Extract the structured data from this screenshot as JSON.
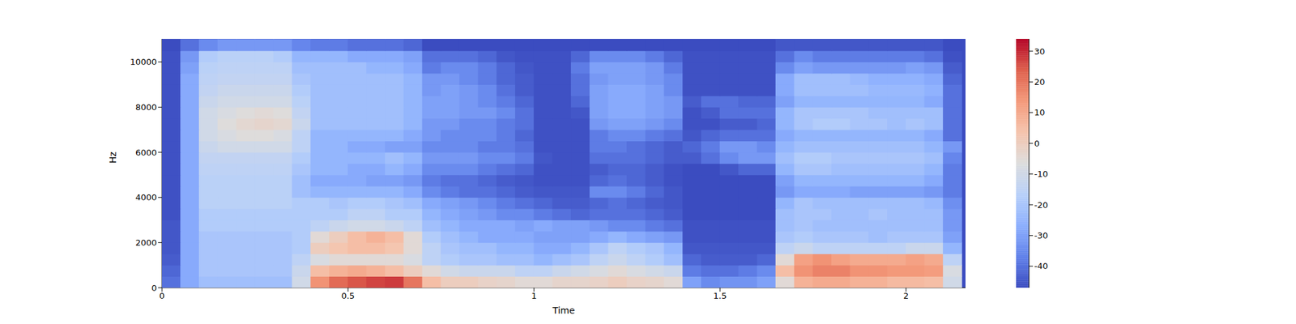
{
  "chart_data": {
    "type": "heatmap",
    "xlabel": "Time",
    "ylabel": "Hz",
    "x": [
      0,
      0.05,
      0.1,
      0.15,
      0.2,
      0.25,
      0.3,
      0.35,
      0.4,
      0.45,
      0.5,
      0.55,
      0.6,
      0.65,
      0.7,
      0.75,
      0.8,
      0.85,
      0.9,
      0.95,
      1,
      1.05,
      1.1,
      1.15,
      1.2,
      1.25,
      1.3,
      1.35,
      1.4,
      1.45,
      1.5,
      1.55,
      1.6,
      1.65,
      1.7,
      1.75,
      1.8,
      1.85,
      1.9,
      1.95,
      2,
      2.05,
      2.1
    ],
    "y": [
      0,
      500,
      1000,
      1500,
      2000,
      2500,
      3000,
      3500,
      4000,
      4500,
      5000,
      5500,
      6000,
      6500,
      7000,
      7500,
      8000,
      8500,
      9000,
      9500,
      10000,
      10500
    ],
    "values": [
      [
        -40,
        -28,
        -22,
        -22,
        -22,
        -22,
        -22,
        -10,
        15,
        22,
        25,
        27,
        28,
        20,
        5,
        0,
        0,
        -2,
        -3,
        -5,
        -5,
        -3,
        -3,
        -2,
        0,
        -2,
        -3,
        -5,
        -30,
        -35,
        -33,
        -33,
        -30,
        -5,
        8,
        10,
        10,
        8,
        8,
        6,
        6,
        5,
        -10
      ],
      [
        -42,
        -28,
        -20,
        -20,
        -20,
        -20,
        -20,
        -12,
        5,
        8,
        10,
        8,
        5,
        0,
        -5,
        -10,
        -12,
        -12,
        -12,
        -15,
        -15,
        -12,
        -10,
        -8,
        -5,
        -8,
        -10,
        -12,
        -38,
        -40,
        -40,
        -38,
        -35,
        5,
        15,
        18,
        18,
        15,
        15,
        14,
        14,
        13,
        -8
      ],
      [
        -44,
        -28,
        -20,
        -20,
        -20,
        -20,
        -20,
        -15,
        -8,
        -5,
        -5,
        -5,
        -5,
        -8,
        -15,
        -18,
        -20,
        -20,
        -22,
        -22,
        -25,
        -22,
        -20,
        -15,
        -12,
        -15,
        -18,
        -22,
        -42,
        -44,
        -44,
        -44,
        -42,
        -5,
        12,
        15,
        12,
        10,
        10,
        10,
        12,
        10,
        -15
      ],
      [
        -45,
        -28,
        -20,
        -20,
        -20,
        -20,
        -20,
        -18,
        0,
        3,
        5,
        5,
        3,
        -5,
        -15,
        -20,
        -22,
        -22,
        -25,
        -25,
        -28,
        -28,
        -25,
        -20,
        -15,
        -18,
        -20,
        -25,
        -45,
        -45,
        -45,
        -45,
        -45,
        -15,
        -12,
        -15,
        -15,
        -15,
        -15,
        -15,
        -12,
        -12,
        -25
      ],
      [
        -45,
        -28,
        -20,
        -20,
        -20,
        -20,
        -20,
        -18,
        -5,
        0,
        5,
        8,
        5,
        -5,
        -18,
        -22,
        -25,
        -28,
        -28,
        -28,
        -30,
        -30,
        -30,
        -28,
        -25,
        -28,
        -30,
        -32,
        -46,
        -46,
        -46,
        -46,
        -46,
        -20,
        -18,
        -20,
        -20,
        -20,
        -22,
        -20,
        -20,
        -20,
        -30
      ],
      [
        -45,
        -28,
        -18,
        -18,
        -18,
        -18,
        -18,
        -18,
        -15,
        -12,
        -10,
        -10,
        -12,
        -15,
        -22,
        -25,
        -28,
        -28,
        -28,
        -30,
        -28,
        -30,
        -30,
        -32,
        -35,
        -35,
        -38,
        -40,
        -46,
        -46,
        -46,
        -46,
        -46,
        -22,
        -20,
        -22,
        -22,
        -22,
        -22,
        -22,
        -22,
        -22,
        -32
      ],
      [
        -46,
        -28,
        -18,
        -18,
        -18,
        -18,
        -18,
        -18,
        -18,
        -18,
        -15,
        -15,
        -18,
        -18,
        -25,
        -28,
        -30,
        -32,
        -35,
        -35,
        -38,
        -40,
        -42,
        -40,
        -40,
        -40,
        -42,
        -44,
        -47,
        -47,
        -47,
        -47,
        -47,
        -22,
        -20,
        -20,
        -22,
        -22,
        -20,
        -22,
        -22,
        -22,
        -32
      ],
      [
        -46,
        -28,
        -16,
        -16,
        -16,
        -16,
        -16,
        -18,
        -18,
        -20,
        -18,
        -18,
        -20,
        -22,
        -28,
        -30,
        -32,
        -35,
        -38,
        -40,
        -42,
        -44,
        -44,
        -42,
        -40,
        -42,
        -44,
        -45,
        -47,
        -47,
        -47,
        -47,
        -47,
        -25,
        -20,
        -22,
        -22,
        -22,
        -22,
        -22,
        -22,
        -24,
        -34
      ],
      [
        -46,
        -28,
        -16,
        -16,
        -16,
        -16,
        -16,
        -22,
        -25,
        -25,
        -25,
        -25,
        -25,
        -28,
        -35,
        -38,
        -40,
        -40,
        -42,
        -44,
        -45,
        -45,
        -45,
        -35,
        -35,
        -38,
        -42,
        -45,
        -47,
        -47,
        -47,
        -47,
        -47,
        -32,
        -28,
        -28,
        -28,
        -30,
        -30,
        -30,
        -30,
        -32,
        -38
      ],
      [
        -46,
        -28,
        -16,
        -16,
        -16,
        -16,
        -16,
        -22,
        -28,
        -28,
        -28,
        -30,
        -30,
        -32,
        -38,
        -40,
        -40,
        -42,
        -44,
        -45,
        -46,
        -46,
        -46,
        -42,
        -40,
        -42,
        -44,
        -46,
        -47,
        -47,
        -47,
        -47,
        -47,
        -30,
        -25,
        -25,
        -25,
        -25,
        -25,
        -25,
        -25,
        -28,
        -38
      ],
      [
        -46,
        -28,
        -15,
        -15,
        -15,
        -15,
        -15,
        -20,
        -25,
        -25,
        -28,
        -28,
        -25,
        -28,
        -35,
        -35,
        -35,
        -38,
        -40,
        -42,
        -46,
        -46,
        -46,
        -44,
        -42,
        -42,
        -44,
        -46,
        -47,
        -47,
        -45,
        -42,
        -42,
        -25,
        -20,
        -20,
        -22,
        -22,
        -22,
        -22,
        -22,
        -25,
        -38
      ],
      [
        -46,
        -28,
        -14,
        -14,
        -14,
        -14,
        -14,
        -18,
        -25,
        -25,
        -25,
        -25,
        -22,
        -25,
        -32,
        -32,
        -32,
        -35,
        -35,
        -38,
        -45,
        -46,
        -46,
        -40,
        -40,
        -40,
        -42,
        -44,
        -44,
        -40,
        -35,
        -32,
        -32,
        -22,
        -18,
        -18,
        -20,
        -20,
        -20,
        -20,
        -20,
        -22,
        -36
      ],
      [
        -46,
        -28,
        -12,
        -10,
        -10,
        -10,
        -10,
        -15,
        -25,
        -25,
        -28,
        -28,
        -30,
        -30,
        -35,
        -35,
        -35,
        -38,
        -38,
        -40,
        -46,
        -46,
        -46,
        -38,
        -38,
        -40,
        -42,
        -44,
        -42,
        -38,
        -32,
        -32,
        -35,
        -25,
        -22,
        -22,
        -22,
        -22,
        -22,
        -22,
        -22,
        -25,
        -32
      ],
      [
        -46,
        -28,
        -10,
        -8,
        -6,
        -6,
        -8,
        -15,
        -25,
        -25,
        -25,
        -25,
        -25,
        -28,
        -32,
        -35,
        -35,
        -35,
        -38,
        -42,
        -46,
        -46,
        -46,
        -38,
        -35,
        -35,
        -38,
        -40,
        -45,
        -42,
        -40,
        -40,
        -40,
        -28,
        -25,
        -25,
        -25,
        -25,
        -25,
        -25,
        -25,
        -28,
        -40
      ],
      [
        -46,
        -28,
        -10,
        -6,
        -4,
        -3,
        -4,
        -12,
        -22,
        -22,
        -22,
        -22,
        -22,
        -25,
        -32,
        -32,
        -35,
        -35,
        -38,
        -40,
        -46,
        -46,
        -46,
        -32,
        -30,
        -30,
        -32,
        -35,
        -46,
        -46,
        -44,
        -44,
        -42,
        -25,
        -20,
        -18,
        -18,
        -20,
        -20,
        -22,
        -20,
        -22,
        -40
      ],
      [
        -46,
        -28,
        -10,
        -8,
        -6,
        -5,
        -6,
        -14,
        -22,
        -22,
        -22,
        -22,
        -22,
        -25,
        -30,
        -30,
        -32,
        -32,
        -35,
        -40,
        -46,
        -46,
        -45,
        -30,
        -28,
        -28,
        -30,
        -32,
        -46,
        -44,
        -40,
        -40,
        -40,
        -25,
        -20,
        -20,
        -20,
        -20,
        -22,
        -22,
        -22,
        -22,
        -40
      ],
      [
        -46,
        -28,
        -12,
        -10,
        -10,
        -10,
        -10,
        -16,
        -22,
        -22,
        -22,
        -22,
        -22,
        -25,
        -30,
        -30,
        -32,
        -35,
        -38,
        -42,
        -46,
        -46,
        -42,
        -30,
        -28,
        -28,
        -30,
        -32,
        -44,
        -40,
        -40,
        -42,
        -42,
        -30,
        -25,
        -25,
        -25,
        -25,
        -25,
        -25,
        -25,
        -28,
        -40
      ],
      [
        -46,
        -28,
        -14,
        -12,
        -12,
        -12,
        -12,
        -18,
        -22,
        -22,
        -22,
        -22,
        -22,
        -25,
        -32,
        -30,
        -32,
        -35,
        -40,
        -44,
        -46,
        -46,
        -40,
        -30,
        -28,
        -28,
        -30,
        -35,
        -46,
        -46,
        -46,
        -46,
        -46,
        -28,
        -22,
        -22,
        -22,
        -22,
        -24,
        -24,
        -24,
        -26,
        -40
      ],
      [
        -46,
        -28,
        -15,
        -14,
        -14,
        -14,
        -14,
        -20,
        -22,
        -22,
        -22,
        -22,
        -22,
        -25,
        -32,
        -32,
        -35,
        -38,
        -42,
        -44,
        -46,
        -46,
        -40,
        -32,
        -30,
        -30,
        -32,
        -35,
        -46,
        -46,
        -46,
        -46,
        -46,
        -28,
        -22,
        -22,
        -22,
        -24,
        -26,
        -26,
        -26,
        -28,
        -42
      ],
      [
        -46,
        -30,
        -16,
        -15,
        -15,
        -15,
        -15,
        -22,
        -22,
        -22,
        -22,
        -25,
        -25,
        -28,
        -38,
        -35,
        -35,
        -38,
        -42,
        -45,
        -46,
        -46,
        -38,
        -30,
        -30,
        -30,
        -32,
        -38,
        -46,
        -46,
        -46,
        -46,
        -46,
        -35,
        -30,
        -32,
        -32,
        -32,
        -32,
        -32,
        -30,
        -32,
        -44
      ],
      [
        -46,
        -32,
        -18,
        -16,
        -16,
        -16,
        -18,
        -25,
        -25,
        -25,
        -28,
        -28,
        -28,
        -30,
        -40,
        -40,
        -40,
        -42,
        -45,
        -46,
        -46,
        -46,
        -42,
        -35,
        -35,
        -35,
        -38,
        -42,
        -46,
        -46,
        -46,
        -46,
        -46,
        -40,
        -35,
        -38,
        -38,
        -38,
        -38,
        -38,
        -38,
        -40,
        -46
      ],
      [
        -47,
        -40,
        -35,
        -32,
        -32,
        -32,
        -32,
        -36,
        -38,
        -38,
        -40,
        -40,
        -40,
        -42,
        -47,
        -47,
        -47,
        -47,
        -47,
        -47,
        -47,
        -47,
        -47,
        -47,
        -47,
        -47,
        -47,
        -47,
        -47,
        -47,
        -47,
        -47,
        -47,
        -45,
        -45,
        -45,
        -45,
        -45,
        -45,
        -45,
        -45,
        -45,
        -47
      ]
    ],
    "xlim": [
      0,
      2.16
    ],
    "ylim": [
      0,
      11025
    ],
    "xticks": [
      0,
      0.5,
      1,
      1.5,
      2
    ],
    "yticks": [
      0,
      2000,
      4000,
      6000,
      8000,
      10000
    ],
    "colorbar": {
      "range": [
        -47,
        34
      ],
      "ticks": [
        -40,
        -30,
        -20,
        -10,
        0,
        10,
        20,
        30
      ]
    }
  }
}
